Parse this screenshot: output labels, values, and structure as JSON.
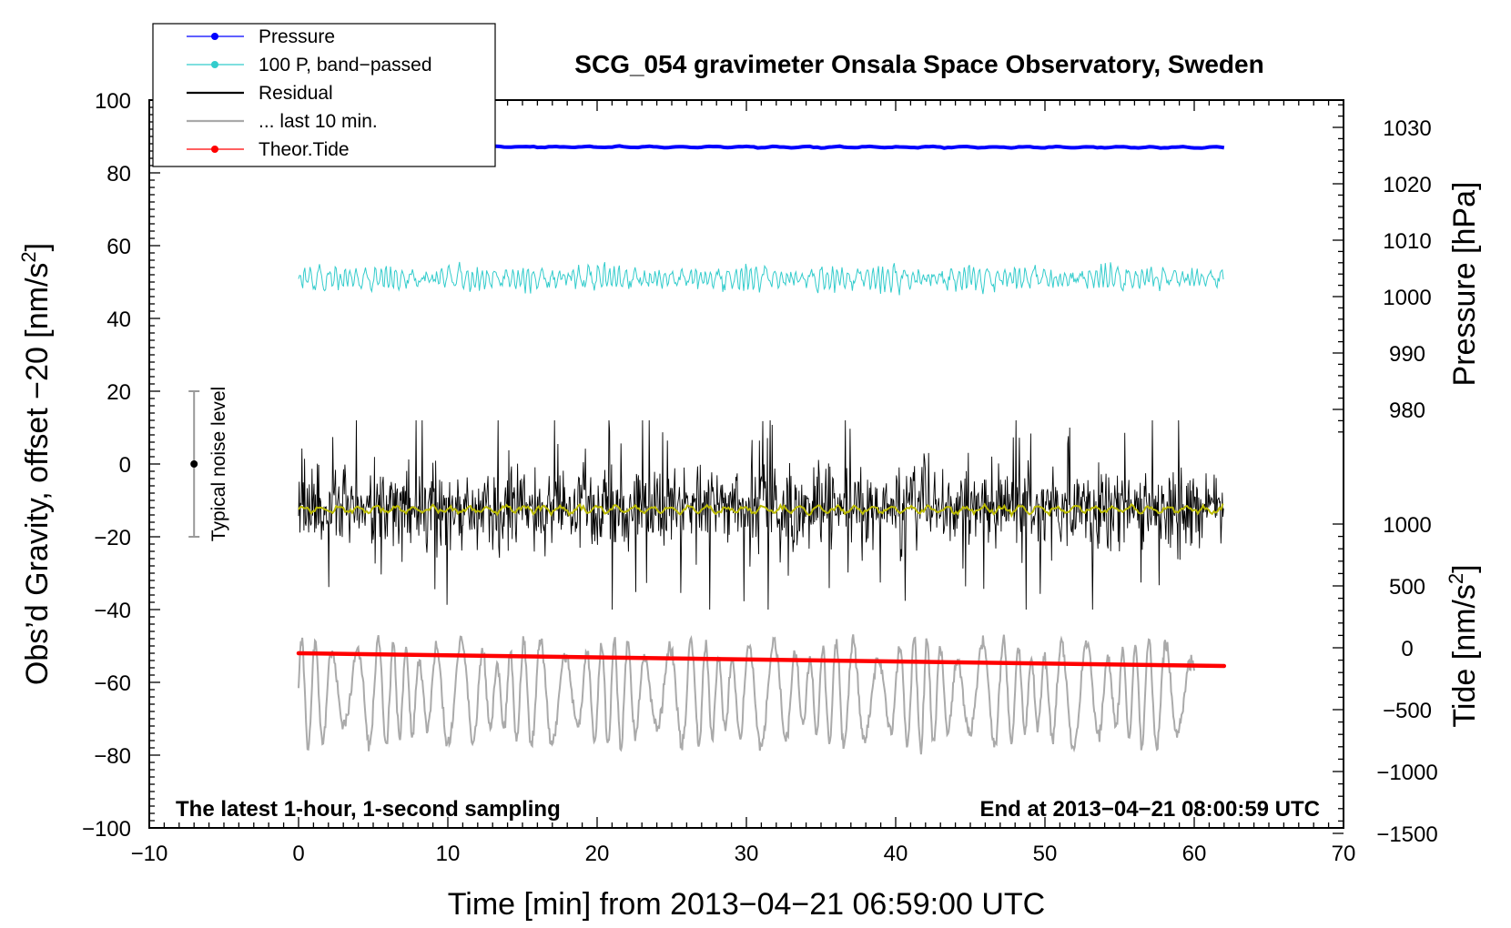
{
  "chart_data": {
    "type": "line",
    "title": "SCG_054 gravimeter Onsala Space Observatory, Sweden",
    "xlabel": "Time [min] from 2013−04−21 06:59:00 UTC",
    "ylabel_left": "Obs’d Gravity, offset −20 [nm/s",
    "ylabel_left_sup": "2",
    "ylabel_left_close": "]",
    "ylabel_right_pressure": "Pressure [hPa]",
    "ylabel_right_tide": "Tide [nm/s",
    "ylabel_right_tide_sup": "2",
    "ylabel_right_tide_close": "]",
    "xlim": [
      -10,
      70
    ],
    "ylim_left": [
      -100,
      100
    ],
    "x_ticks": [
      "−10",
      "0",
      "10",
      "20",
      "30",
      "40",
      "50",
      "60",
      "70"
    ],
    "y_left_ticks": [
      "100",
      "80",
      "60",
      "40",
      "20",
      "0",
      "−20",
      "−40",
      "−60",
      "−80",
      "−100"
    ],
    "pressure_ticks": [
      "1030",
      "1020",
      "1010",
      "1000",
      "990",
      "980"
    ],
    "tide_ticks": [
      "1000",
      "500",
      "0",
      "−500",
      "−1000",
      "−1500"
    ],
    "note_left": "The latest 1-hour, 1-second sampling",
    "note_right": "End at 2013−04−21 08:00:59 UTC",
    "noise_label": "Typical noise level",
    "noise_bar": {
      "x": -7,
      "center": 0,
      "low": -20,
      "high": 20
    },
    "legend": [
      {
        "label": "Pressure",
        "color": "#0000ff",
        "marker": true
      },
      {
        "label": "100 P, band−passed",
        "color": "#33cccc",
        "marker": true
      },
      {
        "label": "Residual",
        "color": "#000000",
        "marker": false
      },
      {
        "label": "... last 10 min.",
        "color": "#aaaaaa",
        "marker": false
      },
      {
        "label": "Theor.Tide",
        "color": "#ff0000",
        "marker": true
      }
    ],
    "series": [
      {
        "name": "Pressure",
        "color": "#0000ff",
        "x_range": [
          0,
          62
        ],
        "left_axis_level": [
          87.2,
          87.0
        ],
        "pressure_hPa": 1026.8
      },
      {
        "name": "100 P, band−passed",
        "color": "#33cccc",
        "x_range": [
          0,
          62
        ],
        "center": 51,
        "amplitude": 5
      },
      {
        "name": "Residual",
        "color": "#000000",
        "x_range": [
          0,
          62
        ],
        "center": -12,
        "amplitude": 25
      },
      {
        "name": "Residual smoothed",
        "color": "#bbbb00",
        "x_range": [
          0,
          62
        ],
        "center": -12.5
      },
      {
        "name": "... last 10 min.",
        "color": "#aaaaaa",
        "x_range": [
          0,
          60
        ],
        "center": -63,
        "amplitude": 20
      },
      {
        "name": "Theor.Tide",
        "color": "#ff0000",
        "x_range": [
          0,
          62
        ],
        "left_axis_level": [
          -52,
          -55.5
        ]
      }
    ]
  }
}
